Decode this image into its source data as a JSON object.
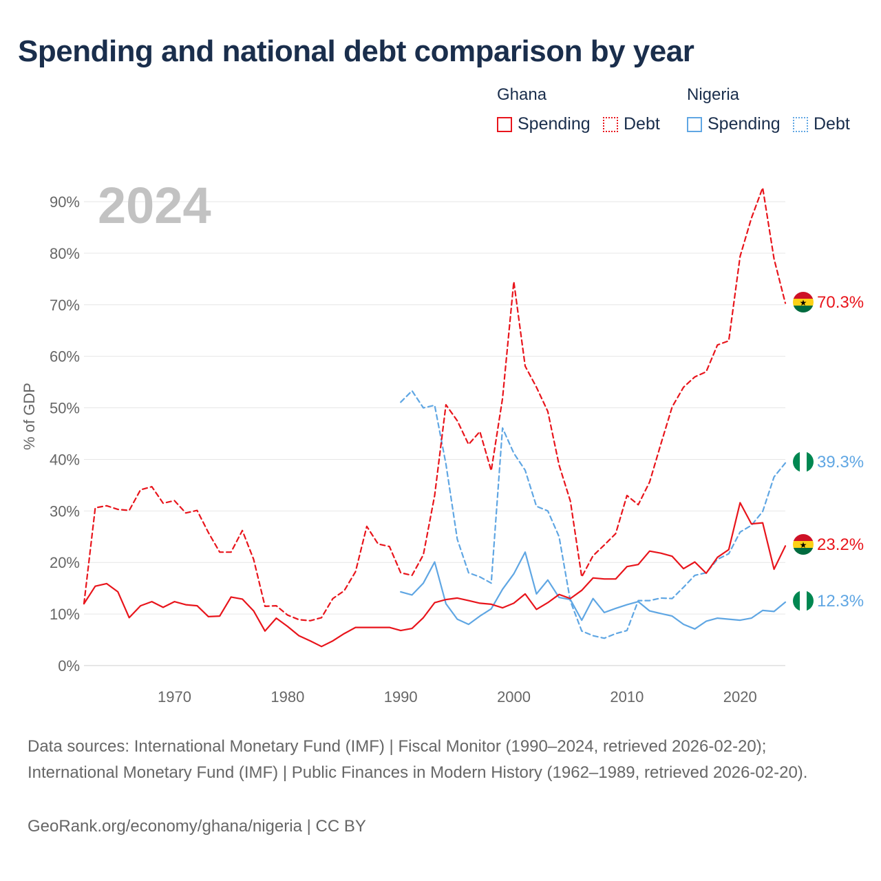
{
  "title": "Spending and national debt comparison by year",
  "legend": {
    "groups": [
      {
        "name": "Ghana",
        "items": [
          {
            "label": "Spending",
            "color": "#e8141b",
            "style": "solid"
          },
          {
            "label": "Debt",
            "color": "#e8141b",
            "style": "dotted"
          }
        ]
      },
      {
        "name": "Nigeria",
        "items": [
          {
            "label": "Spending",
            "color": "#5fa6e3",
            "style": "solid"
          },
          {
            "label": "Debt",
            "color": "#5fa6e3",
            "style": "dotted"
          }
        ]
      }
    ]
  },
  "year_label": "2024",
  "end_labels": {
    "ghana_debt": "70.3%",
    "nigeria_debt": "39.3%",
    "ghana_spending": "23.2%",
    "nigeria_spending": "12.3%"
  },
  "footer": {
    "sources": "Data sources: International Monetary Fund (IMF) | Fiscal Monitor (1990–2024, retrieved 2026-02-20); International Monetary Fund (IMF) | Public Finances in Modern History (1962–1989, retrieved 2026-02-20).",
    "credit": "GeoRank.org/economy/ghana/nigeria | CC BY"
  },
  "chart_data": {
    "type": "line",
    "title": "Spending and national debt comparison by year",
    "xlabel": "",
    "ylabel": "% of GDP",
    "xlim": [
      1962,
      2024
    ],
    "ylim": [
      0,
      90
    ],
    "x_ticks": [
      1970,
      1980,
      1990,
      2000,
      2010,
      2020
    ],
    "y_ticks": [
      0,
      10,
      20,
      30,
      40,
      50,
      60,
      70,
      80,
      90
    ],
    "y_tick_labels": [
      "0%",
      "10%",
      "20%",
      "30%",
      "40%",
      "50%",
      "60%",
      "70%",
      "80%",
      "90%"
    ],
    "colors": {
      "ghana": "#e8141b",
      "nigeria": "#5fa6e3"
    },
    "series": [
      {
        "name": "Ghana Spending",
        "country": "ghana",
        "style": "solid",
        "color": "#e8141b",
        "start_year": 1962,
        "values": [
          12.0,
          15.4,
          15.9,
          14.3,
          9.3,
          11.6,
          12.4,
          11.3,
          12.4,
          11.8,
          11.6,
          9.5,
          9.6,
          13.3,
          12.9,
          10.6,
          6.7,
          9.2,
          7.6,
          5.8,
          4.8,
          3.7,
          4.8,
          6.2,
          7.4,
          7.4,
          7.4,
          7.4,
          6.8,
          7.2,
          9.3,
          12.2,
          12.8,
          13.1,
          12.6,
          12.1,
          11.9,
          11.2,
          12.1,
          13.9,
          10.9,
          12.2,
          13.8,
          13.0,
          14.6,
          17.0,
          16.8,
          16.8,
          19.2,
          19.6,
          22.2,
          21.8,
          21.2,
          18.8,
          20.1,
          17.9,
          21.0,
          22.5,
          31.6,
          27.5,
          27.7,
          18.7,
          23.2
        ]
      },
      {
        "name": "Ghana Debt",
        "country": "ghana",
        "style": "dashed",
        "color": "#e8141b",
        "start_year": 1962,
        "values": [
          12.0,
          30.6,
          31.0,
          30.3,
          30.1,
          34.1,
          34.7,
          31.5,
          32.0,
          29.6,
          30.1,
          25.8,
          22.0,
          22.0,
          26.2,
          20.6,
          11.5,
          11.6,
          9.8,
          8.9,
          8.7,
          9.3,
          13.0,
          14.5,
          18.2,
          27.0,
          23.6,
          23.1,
          18.0,
          17.5,
          21.5,
          33.0,
          50.6,
          47.5,
          42.9,
          45.4,
          37.8,
          51.8,
          74.5,
          58.1,
          54.0,
          49.3,
          38.9,
          31.9,
          17.2,
          21.3,
          23.4,
          25.6,
          33.0,
          31.2,
          35.6,
          43.0,
          50.2,
          54.0,
          56.0,
          57.0,
          62.2,
          63.0,
          79.4,
          86.8,
          92.7,
          78.9,
          70.3
        ]
      },
      {
        "name": "Nigeria Spending",
        "country": "nigeria",
        "style": "solid",
        "color": "#5fa6e3",
        "start_year": 1990,
        "values": [
          14.3,
          13.7,
          16.0,
          20.1,
          12.0,
          9.0,
          8.0,
          9.6,
          11.0,
          14.8,
          17.8,
          22.0,
          13.9,
          16.6,
          13.2,
          12.8,
          8.8,
          13.0,
          10.3,
          11.1,
          11.8,
          12.4,
          10.6,
          10.1,
          9.6,
          8.0,
          7.1,
          8.6,
          9.2,
          9.0,
          8.8,
          9.2,
          10.7,
          10.5,
          12.3
        ]
      },
      {
        "name": "Nigeria Debt",
        "country": "nigeria",
        "style": "dashed",
        "color": "#5fa6e3",
        "start_year": 1990,
        "values": [
          51.1,
          53.3,
          50.0,
          50.5,
          39.1,
          24.5,
          18.0,
          17.2,
          16.0,
          46.1,
          41.2,
          37.9,
          30.9,
          30.0,
          25.0,
          12.5,
          6.7,
          5.8,
          5.3,
          6.2,
          6.8,
          12.6,
          12.6,
          13.1,
          13.0,
          15.2,
          17.5,
          18.0,
          20.6,
          21.7,
          25.9,
          27.2,
          29.9,
          36.6,
          39.3
        ]
      }
    ]
  }
}
